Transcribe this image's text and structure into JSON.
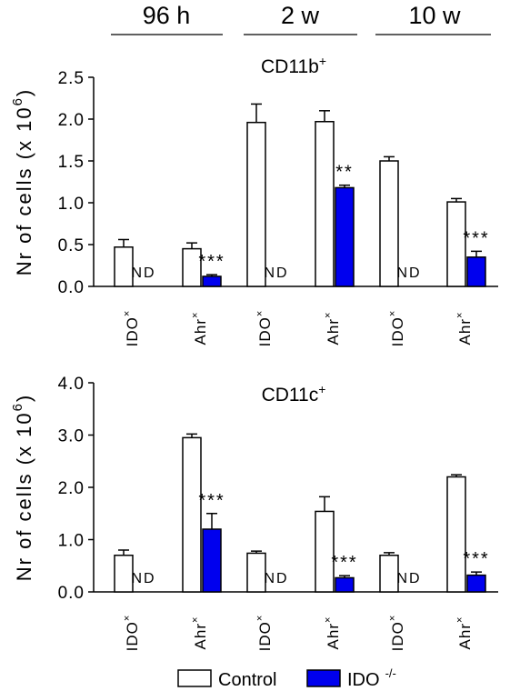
{
  "time_points": [
    "96 h",
    "2 w",
    "10 w"
  ],
  "legend": [
    {
      "label": "Control",
      "color": "#ffffff"
    },
    {
      "label": "IDO",
      "superscript": "-/-",
      "color": "#0000ee"
    }
  ],
  "chart_data": [
    {
      "type": "bar",
      "title": "CD11b",
      "title_superscript": "+",
      "ylabel": "Nr of cells (x 10",
      "ylabel_superscript": "6",
      "ylim": [
        0,
        2.5
      ],
      "yticks": [
        "0.0",
        "0.5",
        "1.0",
        "1.5",
        "2.0",
        "2.5"
      ],
      "tick_values": [
        0,
        0.5,
        1.0,
        1.5,
        2.0,
        2.5
      ],
      "categories": [
        "IDO",
        "Ahr",
        "IDO",
        "Ahr",
        "IDO",
        "Ahr"
      ],
      "category_superscript": "×",
      "series": [
        {
          "name": "Control",
          "values": [
            0.47,
            0.45,
            1.96,
            1.97,
            1.5,
            1.01
          ],
          "errors": [
            0.09,
            0.07,
            0.22,
            0.13,
            0.05,
            0.04
          ]
        },
        {
          "name": "IDO -/-",
          "values": [
            null,
            0.12,
            null,
            1.18,
            null,
            0.35
          ],
          "errors": [
            null,
            0.02,
            null,
            0.03,
            null,
            0.07
          ]
        }
      ],
      "annotations": [
        "ND",
        "***",
        "ND",
        "**",
        "ND",
        "***"
      ]
    },
    {
      "type": "bar",
      "title": "CD11c",
      "title_superscript": "+",
      "ylabel": "Nr of cells (x 10",
      "ylabel_superscript": "6",
      "ylim": [
        0,
        4.0
      ],
      "yticks": [
        "0.0",
        "1.0",
        "2.0",
        "3.0",
        "4.0"
      ],
      "tick_values": [
        0,
        1.0,
        2.0,
        3.0,
        4.0
      ],
      "categories": [
        "IDO",
        "Ahr",
        "IDO",
        "Ahr",
        "IDO",
        "Ahr"
      ],
      "category_superscript": "×",
      "series": [
        {
          "name": "Control",
          "values": [
            0.7,
            2.95,
            0.74,
            1.54,
            0.7,
            2.2
          ],
          "errors": [
            0.1,
            0.07,
            0.04,
            0.28,
            0.05,
            0.04
          ]
        },
        {
          "name": "IDO -/-",
          "values": [
            null,
            1.2,
            null,
            0.27,
            null,
            0.32
          ],
          "errors": [
            null,
            0.3,
            null,
            0.04,
            null,
            0.06
          ]
        }
      ],
      "annotations": [
        "ND",
        "***",
        "ND",
        "***",
        "ND",
        "***"
      ]
    }
  ]
}
